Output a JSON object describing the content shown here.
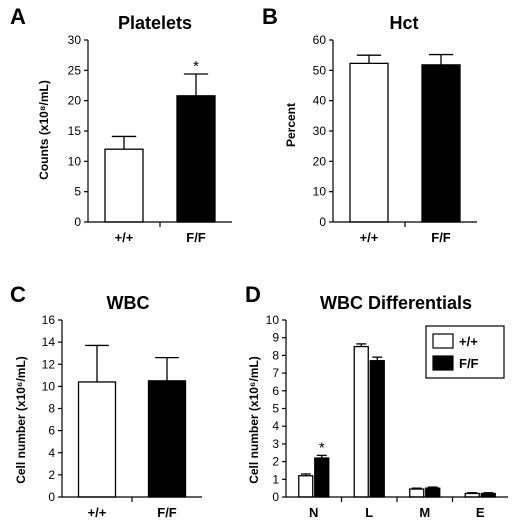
{
  "chart_data": [
    {
      "type": "bar",
      "panel": "A",
      "title": "Platelets",
      "ylabel": "Counts (x10⁸/mL)",
      "ylim": [
        0,
        30
      ],
      "yticks": [
        0,
        5,
        10,
        15,
        20,
        25,
        30
      ],
      "categories": [
        "+/+",
        "F/F"
      ],
      "series": [
        {
          "values": [
            12,
            20.8
          ],
          "errors": [
            2.1,
            3.6
          ],
          "colors": [
            "#ffffff",
            "#000000"
          ],
          "significance": [
            "",
            "*"
          ]
        }
      ]
    },
    {
      "type": "bar",
      "panel": "B",
      "title": "Hct",
      "ylabel": "Percent",
      "ylim": [
        0,
        60
      ],
      "yticks": [
        0,
        10,
        20,
        30,
        40,
        50,
        60
      ],
      "categories": [
        "+/+",
        "F/F"
      ],
      "series": [
        {
          "values": [
            52.3,
            51.8
          ],
          "errors": [
            2.7,
            3.4
          ],
          "colors": [
            "#ffffff",
            "#000000"
          ],
          "significance": [
            "",
            ""
          ]
        }
      ]
    },
    {
      "type": "bar",
      "panel": "C",
      "title": "WBC",
      "ylabel": "Cell number (x10⁶/mL)",
      "ylim": [
        0,
        16
      ],
      "yticks": [
        0,
        2,
        4,
        6,
        8,
        10,
        12,
        14,
        16
      ],
      "categories": [
        "+/+",
        "F/F"
      ],
      "series": [
        {
          "values": [
            10.4,
            10.5
          ],
          "errors": [
            3.3,
            2.1
          ],
          "colors": [
            "#ffffff",
            "#000000"
          ],
          "significance": [
            "",
            ""
          ]
        }
      ]
    },
    {
      "type": "bar",
      "panel": "D",
      "title": "WBC Differentials",
      "ylabel": "Cell number (x10⁶/mL)",
      "ylim": [
        0,
        10
      ],
      "yticks": [
        0,
        1,
        2,
        3,
        4,
        5,
        6,
        7,
        8,
        9,
        10
      ],
      "categories": [
        "N",
        "L",
        "M",
        "E"
      ],
      "legend_position": "top-right",
      "series": [
        {
          "name": "+/+",
          "color": "#ffffff",
          "values": [
            1.2,
            8.5,
            0.45,
            0.2
          ],
          "errors": [
            0.1,
            0.15,
            0.05,
            0.04
          ],
          "significance": [
            "",
            "",
            "",
            ""
          ]
        },
        {
          "name": "F/F",
          "color": "#000000",
          "values": [
            2.2,
            7.7,
            0.5,
            0.2
          ],
          "errors": [
            0.15,
            0.2,
            0.06,
            0.04
          ],
          "significance": [
            "*",
            "",
            "",
            ""
          ]
        }
      ]
    }
  ]
}
